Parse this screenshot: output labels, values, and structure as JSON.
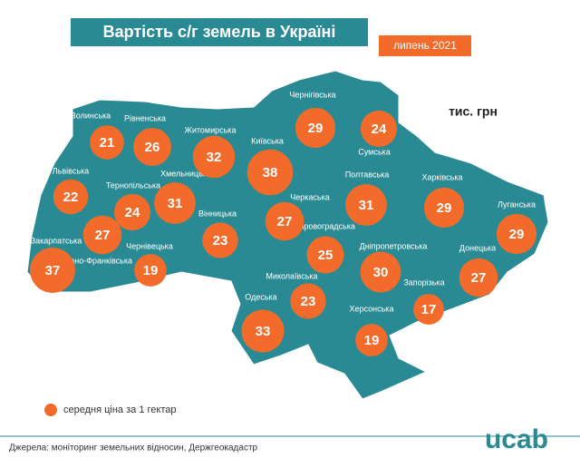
{
  "header": {
    "title": "Вартість с/г земель в Україні",
    "date": "липень 2021"
  },
  "unit": "тис. грн",
  "regions": [
    {
      "name": "Волинська",
      "value": 21
    },
    {
      "name": "Рівненська",
      "value": 26
    },
    {
      "name": "Житомирська",
      "value": 32
    },
    {
      "name": "Київська",
      "value": 38
    },
    {
      "name": "Чернігівська",
      "value": 29
    },
    {
      "name": "Сумська",
      "value": 24
    },
    {
      "name": "Львівська",
      "value": 22
    },
    {
      "name": "Тернопільська",
      "value": 24
    },
    {
      "name": "Хмельницька",
      "value": 31
    },
    {
      "name": "Черкаська",
      "value": 27
    },
    {
      "name": "Полтавська",
      "value": 31
    },
    {
      "name": "Харківська",
      "value": 29
    },
    {
      "name": "Луганська",
      "value": 29
    },
    {
      "name": "Вінницька",
      "value": 23
    },
    {
      "name": "Закарпатська",
      "value": 37
    },
    {
      "name": "Івано-Франківська",
      "value": 27
    },
    {
      "name": "Чернівецька",
      "value": 19
    },
    {
      "name": "Кіровоградська",
      "value": 25
    },
    {
      "name": "Дніпропетровська",
      "value": 30
    },
    {
      "name": "Донецька",
      "value": 27
    },
    {
      "name": "Миколаївська",
      "value": 23
    },
    {
      "name": "Одеська",
      "value": 33
    },
    {
      "name": "Запорізька",
      "value": 17
    },
    {
      "name": "Херсонська",
      "value": 19
    }
  ],
  "legend": "середня ціна за 1 гектар",
  "source": "Джерела: моніторинг земельних відносин, Держгеокадастр",
  "logo": "ucab"
}
